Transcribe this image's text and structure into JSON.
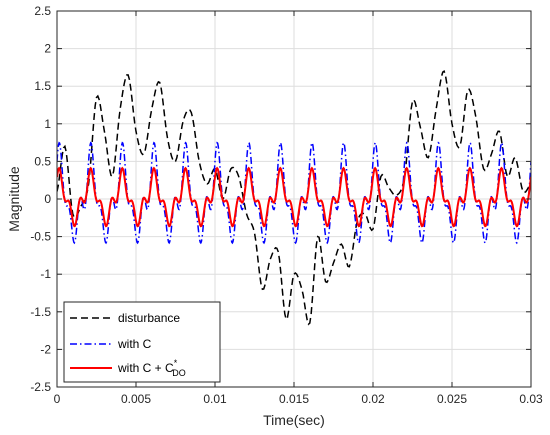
{
  "chart_data": {
    "type": "line",
    "title": "",
    "xlabel": "Time(sec)",
    "ylabel": "Magnitude",
    "xlim": [
      0,
      0.03
    ],
    "ylim": [
      -2.5,
      2.5
    ],
    "grid": true,
    "legend_position": "bottom-left",
    "x_ticks": [
      0,
      0.005,
      0.01,
      0.015,
      0.02,
      0.025,
      0.03
    ],
    "x_tick_labels": [
      "0",
      "0.005",
      "0.01",
      "0.015",
      "0.02",
      "0.025",
      "0.03"
    ],
    "y_ticks": [
      -2.5,
      -2,
      -1.5,
      -1,
      -0.5,
      0,
      0.5,
      1,
      1.5,
      2,
      2.5
    ],
    "y_tick_labels": [
      "-2.5",
      "-2",
      "-1.5",
      "-1",
      "-0.5",
      "0",
      "0.5",
      "1",
      "1.5",
      "2",
      "2.5"
    ],
    "series": [
      {
        "name": "disturbance",
        "color": "#000000",
        "style": "dashed",
        "x": [
          0,
          0.0005,
          0.001,
          0.0015,
          0.002,
          0.0025,
          0.003,
          0.0035,
          0.004,
          0.0045,
          0.005,
          0.0055,
          0.006,
          0.0065,
          0.007,
          0.0075,
          0.008,
          0.0085,
          0.009,
          0.0095,
          0.01,
          0.0105,
          0.011,
          0.0115,
          0.012,
          0.0125,
          0.013,
          0.0135,
          0.014,
          0.0145,
          0.015,
          0.0155,
          0.016,
          0.0165,
          0.017,
          0.0175,
          0.018,
          0.0185,
          0.019,
          0.0195,
          0.02,
          0.0205,
          0.021,
          0.0215,
          0.022,
          0.0225,
          0.023,
          0.0235,
          0.024,
          0.0245,
          0.025,
          0.0255,
          0.026,
          0.0265,
          0.027,
          0.0275,
          0.028,
          0.0285,
          0.029,
          0.0295,
          0.03
        ],
        "y": [
          0.1,
          0.7,
          -0.2,
          -0.1,
          0.2,
          1.35,
          0.9,
          0.3,
          1.2,
          1.65,
          0.9,
          0.6,
          1.2,
          1.55,
          0.8,
          0.5,
          1.05,
          1.15,
          0.5,
          0.2,
          0.4,
          0.0,
          0.4,
          0.3,
          -0.2,
          -0.45,
          -1.2,
          -0.8,
          -0.7,
          -1.6,
          -1.0,
          -1.2,
          -1.65,
          -0.5,
          -1.1,
          -0.85,
          -0.6,
          -0.9,
          -0.3,
          -0.2,
          -0.4,
          0.3,
          0.15,
          0.05,
          0.3,
          1.3,
          0.95,
          0.55,
          1.2,
          1.7,
          1.0,
          0.7,
          1.45,
          1.1,
          0.4,
          0.6,
          0.9,
          0.3,
          0.55,
          0.1,
          0.2
        ]
      },
      {
        "name": "with C",
        "color": "#0000ff",
        "style": "dashdot",
        "amplitude": 0.6,
        "period": 0.002,
        "harmonic": 0.2
      },
      {
        "name": "with C + C",
        "name_superscript": "*",
        "name_subscript": "DO",
        "color": "#ff0000",
        "style": "solid",
        "amplitude": 0.35,
        "period": 0.002,
        "harmonic": 0.1
      }
    ]
  }
}
